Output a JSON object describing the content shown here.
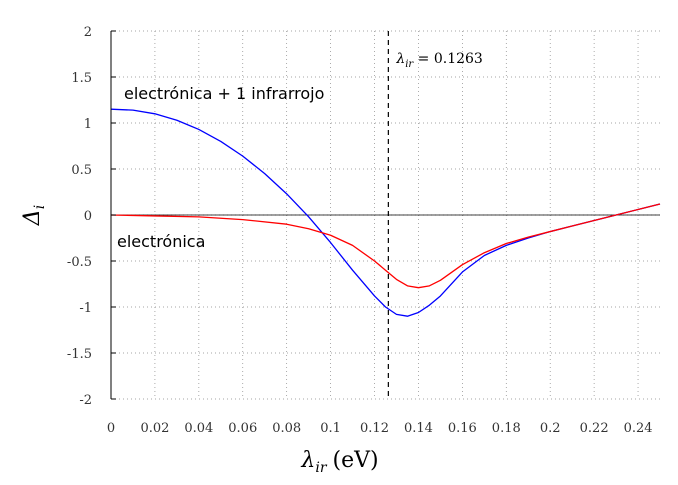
{
  "chart_data": {
    "type": "line",
    "xlabel": "λir (eV)",
    "xlabel_parts": {
      "symbol": "λ",
      "sub": "ir",
      "unit": "(eV)"
    },
    "ylabel": "Δi",
    "ylabel_parts": {
      "symbol": "Δ",
      "sub": "i"
    },
    "xlim": [
      0,
      0.25
    ],
    "ylim": [
      -2,
      2
    ],
    "x_ticks": [
      0,
      0.02,
      0.04,
      0.06,
      0.08,
      0.1,
      0.12,
      0.14,
      0.16,
      0.18,
      0.2,
      0.22,
      0.24
    ],
    "x_tick_labels": [
      "0",
      "0.02",
      "0.04",
      "0.06",
      "0.08",
      "0.1",
      "0.12",
      "0.14",
      "0.16",
      "0.18",
      "0.2",
      "0.22",
      "0.24"
    ],
    "y_ticks": [
      -2,
      -1.5,
      -1,
      -0.5,
      0,
      0.5,
      1,
      1.5,
      2
    ],
    "y_tick_labels": [
      "-2",
      "-1.5",
      "-1",
      "-0.5",
      "0",
      "0.5",
      "1",
      "1.5",
      "2"
    ],
    "grid": true,
    "grid_style": "dotted",
    "zero_line": true,
    "series": [
      {
        "color": "#0000ff",
        "x": [
          0,
          0.01,
          0.02,
          0.03,
          0.04,
          0.05,
          0.06,
          0.07,
          0.08,
          0.09,
          0.1,
          0.11,
          0.12,
          0.125,
          0.13,
          0.135,
          0.14,
          0.145,
          0.15,
          0.16,
          0.17,
          0.18,
          0.19,
          0.2,
          0.21,
          0.22,
          0.23,
          0.24,
          0.25
        ],
        "y": [
          1.15,
          1.14,
          1.1,
          1.03,
          0.93,
          0.8,
          0.64,
          0.45,
          0.23,
          -0.02,
          -0.3,
          -0.6,
          -0.88,
          -1.0,
          -1.08,
          -1.1,
          -1.06,
          -0.98,
          -0.88,
          -0.62,
          -0.44,
          -0.33,
          -0.25,
          -0.18,
          -0.12,
          -0.06,
          0.0,
          0.06,
          0.12
        ]
      },
      {
        "color": "#ff0000",
        "x": [
          0,
          0.02,
          0.04,
          0.06,
          0.08,
          0.09,
          0.1,
          0.11,
          0.12,
          0.125,
          0.13,
          0.135,
          0.14,
          0.145,
          0.15,
          0.16,
          0.17,
          0.18,
          0.19,
          0.2,
          0.21,
          0.22,
          0.23,
          0.24,
          0.25
        ],
        "y": [
          0.0,
          -0.01,
          -0.02,
          -0.05,
          -0.1,
          -0.15,
          -0.22,
          -0.33,
          -0.5,
          -0.6,
          -0.7,
          -0.77,
          -0.79,
          -0.77,
          -0.71,
          -0.54,
          -0.41,
          -0.31,
          -0.24,
          -0.18,
          -0.12,
          -0.06,
          0.0,
          0.06,
          0.12
        ]
      }
    ],
    "vline": {
      "x": 0.1263,
      "label_symbol": "λ",
      "label_sub": "ir",
      "label_rest": " = 0.1263",
      "style": "dashed",
      "color": "#000000"
    },
    "annotations": [
      {
        "text": "electrónica + 1 infrarrojo",
        "near": "upper-left"
      },
      {
        "text": "electrónica",
        "near": "left"
      }
    ]
  }
}
